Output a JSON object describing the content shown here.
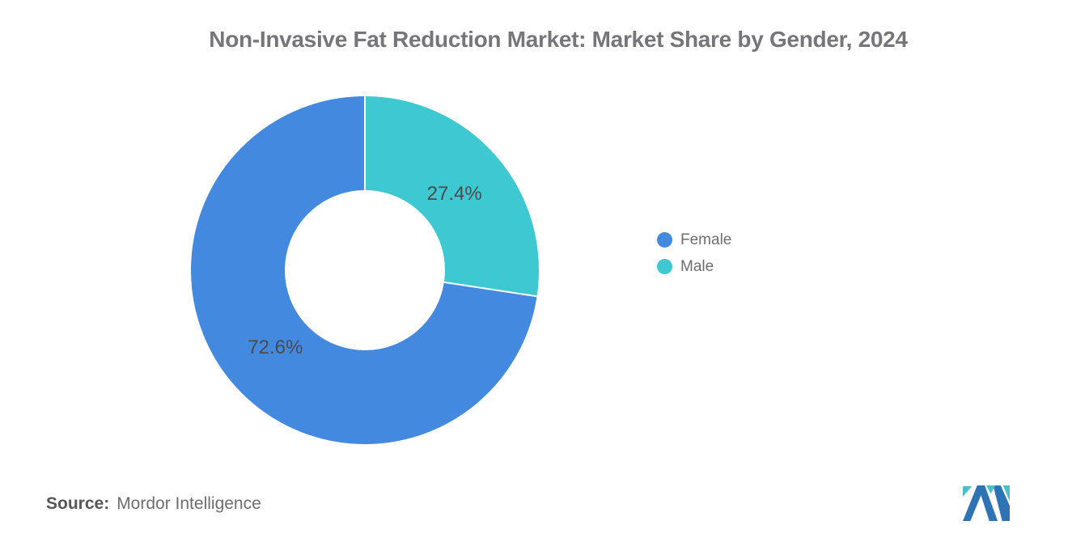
{
  "chart_data": {
    "type": "pie",
    "donut": true,
    "title": "Non-Invasive Fat Reduction Market: Market Share by Gender, 2024",
    "start_angle_deg": 0,
    "direction": "clockwise",
    "legend_position": "right",
    "slice_label_color": "#4b4b4d",
    "series": [
      {
        "name": "Female",
        "value": 72.6,
        "label": "72.6%",
        "color": "#4489E0"
      },
      {
        "name": "Male",
        "value": 27.4,
        "label": "27.4%",
        "color": "#3EC8D2"
      }
    ]
  },
  "source": {
    "prefix": "Source:",
    "text": "Mordor Intelligence"
  },
  "branding": {
    "logo_name": "mordor-intelligence-logo",
    "logo_blue": "#2E74B5",
    "logo_teal": "#45C2C9"
  }
}
